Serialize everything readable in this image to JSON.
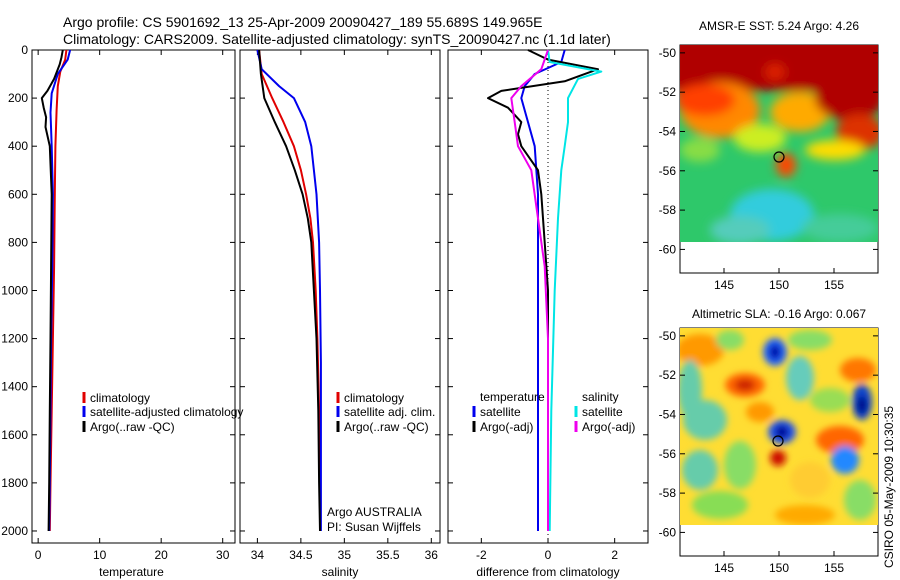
{
  "title": {
    "line1": "Argo profile: CS 5901692_13 25-Apr-2009 20090427_189 55.689S 149.965E",
    "line2": "Climatology: CARS2009. Satellite-adjusted climatology: synTS_20090427.nc (1.1d later)"
  },
  "footer": {
    "credit": "CSIRO 05-May-2009 10:30:35"
  },
  "colors": {
    "climatology": "#e00000",
    "satellite": "#0000ee",
    "argo": "#000000",
    "sal_satellite": "#00e5e5",
    "sal_argo": "#ee00ee"
  },
  "chart_data": [
    {
      "type": "line",
      "id": "temperature",
      "xlabel": "temperature",
      "ylabel": "",
      "xlim": [
        -1,
        32
      ],
      "ylim": [
        2050,
        0
      ],
      "xticks": [
        "0",
        "10",
        "20",
        "30"
      ],
      "xtick_values": [
        0,
        10,
        20,
        30
      ],
      "yticks": [
        "0",
        "200",
        "400",
        "600",
        "800",
        "1000",
        "1200",
        "1400",
        "1600",
        "1800",
        "2000"
      ],
      "ytick_values": [
        0,
        200,
        400,
        600,
        800,
        1000,
        1200,
        1400,
        1600,
        1800,
        2000
      ],
      "legend": [
        "climatology",
        "satellite-adjusted climatology",
        "Argo(..raw -QC)"
      ],
      "series": [
        {
          "name": "climatology",
          "color_key": "climatology",
          "points": [
            [
              4.6,
              0
            ],
            [
              4.4,
              40
            ],
            [
              3.6,
              90
            ],
            [
              3.2,
              150
            ],
            [
              3.0,
              250
            ],
            [
              2.8,
              400
            ],
            [
              2.7,
              600
            ],
            [
              2.6,
              900
            ],
            [
              2.4,
              1200
            ],
            [
              2.2,
              1500
            ],
            [
              2.0,
              1800
            ],
            [
              1.9,
              2000
            ]
          ]
        },
        {
          "name": "satellite-adjusted climatology",
          "color_key": "satellite",
          "points": [
            [
              5.2,
              0
            ],
            [
              4.8,
              40
            ],
            [
              3.2,
              100
            ],
            [
              2.2,
              180
            ],
            [
              2.0,
              260
            ],
            [
              2.2,
              400
            ],
            [
              2.4,
              600
            ],
            [
              2.3,
              900
            ],
            [
              2.1,
              1200
            ],
            [
              2.0,
              1500
            ],
            [
              1.9,
              1800
            ],
            [
              1.8,
              2000
            ]
          ]
        },
        {
          "name": "Argo(..raw -QC)",
          "color_key": "argo",
          "points": [
            [
              4.0,
              0
            ],
            [
              3.8,
              30
            ],
            [
              3.5,
              60
            ],
            [
              2.6,
              120
            ],
            [
              1.5,
              170
            ],
            [
              0.6,
              200
            ],
            [
              0.9,
              240
            ],
            [
              1.3,
              280
            ],
            [
              1.2,
              320
            ],
            [
              1.9,
              400
            ],
            [
              2.2,
              600
            ],
            [
              2.1,
              900
            ],
            [
              2.0,
              1200
            ],
            [
              1.9,
              1500
            ],
            [
              1.8,
              1800
            ],
            [
              1.7,
              2000
            ]
          ]
        }
      ]
    },
    {
      "type": "line",
      "id": "salinity",
      "xlabel": "salinity",
      "xlim": [
        33.8,
        36.1
      ],
      "ylim": [
        2050,
        0
      ],
      "xticks": [
        "34",
        "34.5",
        "35",
        "35.5",
        "36"
      ],
      "xtick_values": [
        34,
        34.5,
        35,
        35.5,
        36
      ],
      "legend": [
        "climatology",
        "satellite adj. clim.",
        "Argo(..raw -QC)"
      ],
      "annotations": [
        "Argo AUSTRALIA",
        "PI: Susan Wijffels"
      ],
      "series": [
        {
          "name": "climatology",
          "color_key": "climatology",
          "points": [
            [
              34.02,
              0
            ],
            [
              34.05,
              100
            ],
            [
              34.17,
              200
            ],
            [
              34.3,
              300
            ],
            [
              34.42,
              400
            ],
            [
              34.5,
              500
            ],
            [
              34.56,
              600
            ],
            [
              34.61,
              700
            ],
            [
              34.64,
              800
            ],
            [
              34.67,
              1000
            ],
            [
              34.69,
              1200
            ],
            [
              34.71,
              1500
            ],
            [
              34.72,
              1800
            ],
            [
              34.72,
              2000
            ]
          ]
        },
        {
          "name": "satellite adj. clim.",
          "color_key": "satellite",
          "points": [
            [
              34.0,
              0
            ],
            [
              34.05,
              80
            ],
            [
              34.25,
              150
            ],
            [
              34.42,
              200
            ],
            [
              34.55,
              300
            ],
            [
              34.62,
              400
            ],
            [
              34.65,
              500
            ],
            [
              34.68,
              600
            ],
            [
              34.71,
              800
            ],
            [
              34.72,
              1000
            ],
            [
              34.73,
              1300
            ],
            [
              34.73,
              1600
            ],
            [
              34.73,
              2000
            ]
          ]
        },
        {
          "name": "Argo(..raw -QC)",
          "color_key": "argo",
          "points": [
            [
              34.02,
              0
            ],
            [
              34.04,
              100
            ],
            [
              34.08,
              200
            ],
            [
              34.2,
              300
            ],
            [
              34.33,
              400
            ],
            [
              34.43,
              500
            ],
            [
              34.52,
              600
            ],
            [
              34.58,
              700
            ],
            [
              34.62,
              800
            ],
            [
              34.65,
              1000
            ],
            [
              34.68,
              1200
            ],
            [
              34.7,
              1500
            ],
            [
              34.71,
              1800
            ],
            [
              34.72,
              2000
            ]
          ]
        }
      ]
    },
    {
      "type": "line",
      "id": "difference",
      "xlabel": "difference from climatology",
      "xlim": [
        -3,
        3
      ],
      "ylim": [
        2050,
        0
      ],
      "xticks": [
        "-2",
        "0",
        "2"
      ],
      "xtick_values": [
        -2,
        0,
        2
      ],
      "legend_headers": [
        "temperature",
        "salinity"
      ],
      "legend": [
        "satellite",
        "Argo(-adj)",
        "satellite",
        "Argo(-adj)"
      ],
      "series": [
        {
          "name": "temperature satellite",
          "color_key": "satellite",
          "points": [
            [
              0.5,
              0
            ],
            [
              0.4,
              50
            ],
            [
              -0.4,
              100
            ],
            [
              -0.7,
              150
            ],
            [
              -0.8,
              200
            ],
            [
              -0.6,
              300
            ],
            [
              -0.4,
              400
            ],
            [
              -0.3,
              600
            ],
            [
              -0.3,
              1000
            ],
            [
              -0.3,
              1500
            ],
            [
              -0.3,
              2000
            ]
          ]
        },
        {
          "name": "temperature Argo(-adj)",
          "color_key": "argo",
          "points": [
            [
              -0.6,
              0
            ],
            [
              0.0,
              40
            ],
            [
              1.5,
              80
            ],
            [
              0.5,
              130
            ],
            [
              -1.4,
              170
            ],
            [
              -1.8,
              200
            ],
            [
              -1.2,
              240
            ],
            [
              -0.8,
              300
            ],
            [
              -0.9,
              350
            ],
            [
              -0.8,
              400
            ],
            [
              -0.3,
              500
            ],
            [
              -0.2,
              600
            ],
            [
              -0.1,
              800
            ],
            [
              0.0,
              1000
            ],
            [
              0.0,
              1500
            ],
            [
              0.0,
              2000
            ]
          ]
        },
        {
          "name": "salinity satellite",
          "color_key": "sal_satellite",
          "points": [
            [
              0.0,
              0
            ],
            [
              0.05,
              50
            ],
            [
              1.6,
              90
            ],
            [
              0.9,
              120
            ],
            [
              0.6,
              200
            ],
            [
              0.6,
              300
            ],
            [
              0.5,
              400
            ],
            [
              0.4,
              500
            ],
            [
              0.3,
              700
            ],
            [
              0.2,
              1000
            ],
            [
              0.1,
              1500
            ],
            [
              0.05,
              2000
            ]
          ]
        },
        {
          "name": "salinity Argo(-adj)",
          "color_key": "sal_argo",
          "points": [
            [
              0.0,
              0
            ],
            [
              -0.2,
              80
            ],
            [
              -0.8,
              150
            ],
            [
              -1.1,
              200
            ],
            [
              -1.0,
              300
            ],
            [
              -0.9,
              400
            ],
            [
              -0.5,
              500
            ],
            [
              -0.3,
              700
            ],
            [
              -0.1,
              900
            ],
            [
              0.0,
              1200
            ],
            [
              0.0,
              1500
            ],
            [
              0.0,
              2000
            ]
          ]
        }
      ]
    },
    {
      "type": "heatmap",
      "id": "sst_map",
      "title": "AMSR-E SST: 5.24 Argo: 4.26",
      "xlim": [
        141,
        159
      ],
      "ylim": [
        -61.2,
        -49.6
      ],
      "xticks": [
        "145",
        "150",
        "155"
      ],
      "xtick_values": [
        145,
        150,
        155
      ],
      "yticks": [
        "-50",
        "-52",
        "-54",
        "-56",
        "-58",
        "-60"
      ],
      "ytick_values": [
        -50,
        -52,
        -54,
        -56,
        -58,
        -60
      ],
      "data_extent": {
        "lon": [
          141,
          159
        ],
        "lat": [
          -60,
          -49.6
        ]
      },
      "marker": {
        "lon": 150,
        "lat": -55.7
      }
    },
    {
      "type": "heatmap",
      "id": "sla_map",
      "title": "Altimetric SLA: -0.16 Argo: 0.067",
      "xlim": [
        141,
        159
      ],
      "ylim": [
        -61.2,
        -49.6
      ],
      "xticks": [
        "145",
        "150",
        "155"
      ],
      "xtick_values": [
        145,
        150,
        155
      ],
      "yticks": [
        "-50",
        "-52",
        "-54",
        "-56",
        "-58",
        "-60"
      ],
      "ytick_values": [
        -50,
        -52,
        -54,
        -56,
        -58,
        -60
      ],
      "data_extent": {
        "lon": [
          141,
          159
        ],
        "lat": [
          -60,
          -49.6
        ]
      },
      "marker": {
        "lon": 150,
        "lat": -55.7
      }
    }
  ]
}
